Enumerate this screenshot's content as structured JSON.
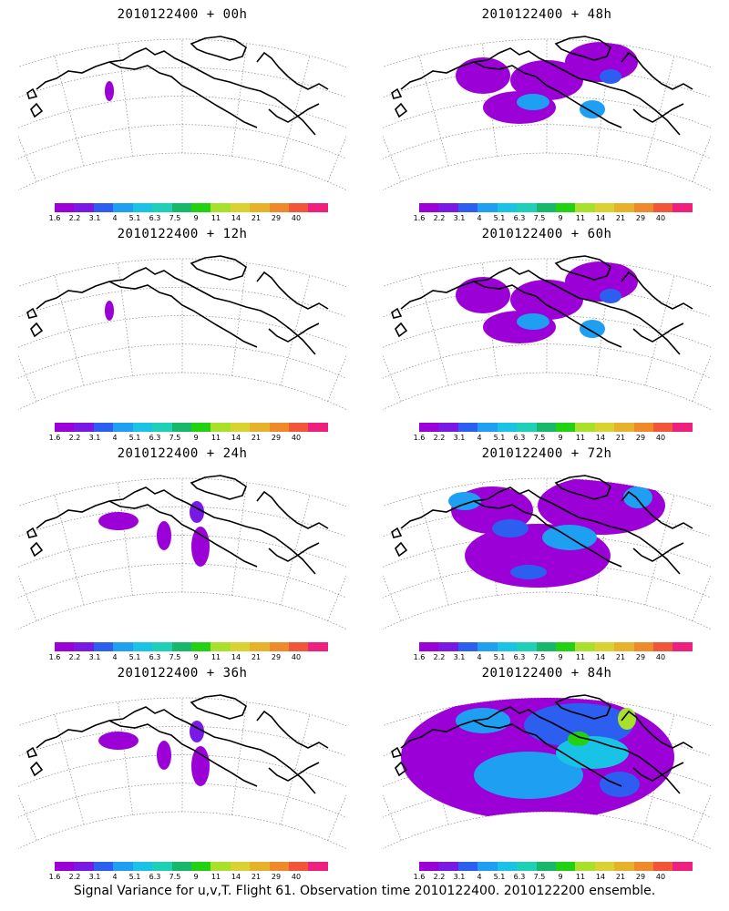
{
  "panels": [
    {
      "title": "2010122400 + 00h",
      "intensity": 0
    },
    {
      "title": "2010122400 + 48h",
      "intensity": 2
    },
    {
      "title": "2010122400 + 12h",
      "intensity": 0
    },
    {
      "title": "2010122400 + 60h",
      "intensity": 2
    },
    {
      "title": "2010122400 + 24h",
      "intensity": 1
    },
    {
      "title": "2010122400 + 72h",
      "intensity": 3
    },
    {
      "title": "2010122400 + 36h",
      "intensity": 1
    },
    {
      "title": "2010122400 + 84h",
      "intensity": 4
    }
  ],
  "colorbar": {
    "labels": [
      "1.6",
      "2.2",
      "3.1",
      "4",
      "5.1",
      "6.3",
      "7.5",
      "9",
      "11",
      "14",
      "21",
      "29",
      "40"
    ],
    "colors": [
      "#9b00d6",
      "#7a18e6",
      "#2c5ff0",
      "#1e9ff2",
      "#19c3e6",
      "#1fd0b8",
      "#18b86b",
      "#22d212",
      "#a8e02c",
      "#dad232",
      "#e6b22c",
      "#ef8a2a",
      "#f2563a",
      "#ef1f7e"
    ]
  },
  "caption": "Signal Variance for u,v,T. Flight 61. Observation time 2010122400. 2010122200 ensemble."
}
